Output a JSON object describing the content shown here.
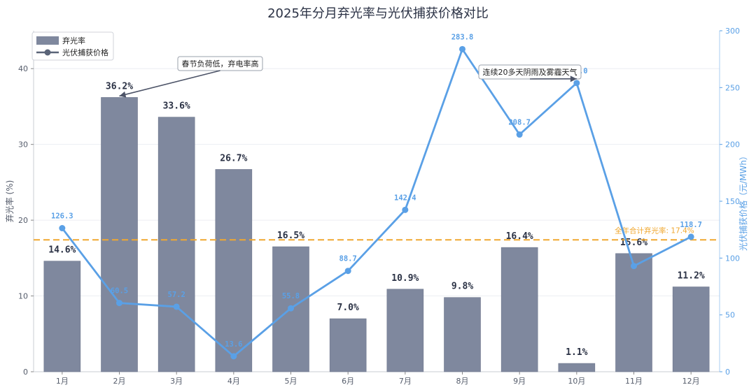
{
  "chart_data": {
    "type": "bar",
    "title": "2025年分月弃光率与光伏捕获价格对比",
    "categories": [
      "1月",
      "2月",
      "3月",
      "4月",
      "5月",
      "6月",
      "7月",
      "8月",
      "9月",
      "10月",
      "11月",
      "12月"
    ],
    "ylabel": "弃光率 (%)",
    "ylabel_right": "光伏捕获价格（元/MWh）",
    "ylim": [
      0,
      45
    ],
    "ylim_right": [
      0,
      300
    ],
    "yticks": [
      0,
      10,
      20,
      30,
      40
    ],
    "yticks_right": [
      0,
      50,
      100,
      150,
      200,
      250,
      300
    ],
    "grid": true,
    "legend_position": "top-left",
    "series": [
      {
        "name": "弃光率",
        "type": "bar",
        "axis": "left",
        "color": "#7f889e",
        "values": [
          14.6,
          36.2,
          33.6,
          26.7,
          16.5,
          7.0,
          10.9,
          9.8,
          16.4,
          1.1,
          15.6,
          11.2
        ],
        "labels": [
          "14.6%",
          "36.2%",
          "33.6%",
          "26.7%",
          "16.5%",
          "7.0%",
          "10.9%",
          "9.8%",
          "16.4%",
          "1.1%",
          "15.6%",
          "11.2%"
        ]
      },
      {
        "name": "光伏捕获价格",
        "type": "line",
        "axis": "right",
        "color": "#5aa0e6",
        "values": [
          126.3,
          60.5,
          57.2,
          13.6,
          55.8,
          88.7,
          142.4,
          283.8,
          208.7,
          254.0,
          93.0,
          118.7
        ],
        "labels": [
          "126.3",
          "60.5",
          "57.2",
          "13.6",
          "55.8",
          "88.7",
          "142.4",
          "283.8",
          "208.7",
          "254.0",
          "",
          "118.7"
        ]
      }
    ],
    "reference_line": {
      "value": 17.4,
      "axis": "left",
      "color": "#f0a830",
      "label": "全年合计弃光率: 17.4%"
    },
    "annotations": [
      {
        "text": "春节负荷低，弃电率高",
        "target_category": "2月",
        "target_value": 36.2,
        "target_axis": "left"
      },
      {
        "text": "连续20多天阴雨及雾霾天气",
        "target_category": "10月",
        "target_value": 254.0,
        "target_axis": "right"
      }
    ]
  }
}
